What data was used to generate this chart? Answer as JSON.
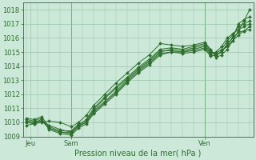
{
  "background_color": "#cce8d8",
  "grid_color": "#99c8aa",
  "line_color": "#2d6e2d",
  "ylabel_values": [
    1009,
    1010,
    1011,
    1012,
    1013,
    1014,
    1015,
    1016,
    1017,
    1018
  ],
  "ylim": [
    1009.0,
    1018.5
  ],
  "xlabel": "Pression niveau de la mer( hPa )",
  "x_ticks": [
    2,
    24,
    96
  ],
  "x_tick_labels": [
    "Jeu",
    "Sam",
    "Ven"
  ],
  "xlim": [
    -2,
    122
  ],
  "vlines_x": [
    24,
    96
  ],
  "lines": [
    {
      "x": [
        0,
        4,
        8,
        12,
        18,
        24,
        28,
        32,
        36,
        42,
        48,
        54,
        60,
        66,
        72,
        78,
        84,
        90,
        96,
        99,
        102,
        105,
        108,
        111,
        114,
        117,
        120
      ],
      "y": [
        1009.8,
        1009.9,
        1010.0,
        1010.1,
        1010.0,
        1009.7,
        1010.0,
        1010.5,
        1011.2,
        1012.0,
        1012.8,
        1013.5,
        1014.2,
        1014.8,
        1015.6,
        1015.5,
        1015.4,
        1015.5,
        1015.7,
        1015.2,
        1014.6,
        1014.8,
        1015.2,
        1015.8,
        1016.5,
        1017.2,
        1018.0
      ]
    },
    {
      "x": [
        0,
        4,
        8,
        12,
        18,
        24,
        28,
        32,
        36,
        42,
        48,
        54,
        60,
        66,
        72,
        78,
        84,
        90,
        96,
        99,
        102,
        105,
        108,
        111,
        114,
        117,
        120
      ],
      "y": [
        1010.0,
        1010.0,
        1010.1,
        1009.8,
        1009.5,
        1009.3,
        1009.8,
        1010.2,
        1011.0,
        1011.8,
        1012.5,
        1013.2,
        1013.9,
        1014.5,
        1015.2,
        1015.3,
        1015.2,
        1015.4,
        1015.6,
        1015.1,
        1014.8,
        1015.0,
        1015.5,
        1016.0,
        1017.0,
        1017.3,
        1017.5
      ]
    },
    {
      "x": [
        0,
        4,
        8,
        12,
        18,
        24,
        28,
        32,
        36,
        42,
        48,
        54,
        60,
        66,
        72,
        78,
        84,
        90,
        96,
        99,
        102,
        105,
        108,
        111,
        114,
        117,
        120
      ],
      "y": [
        1010.1,
        1010.0,
        1010.2,
        1009.6,
        1009.3,
        1009.2,
        1009.7,
        1010.0,
        1010.8,
        1011.5,
        1012.2,
        1013.0,
        1013.7,
        1014.3,
        1015.0,
        1015.2,
        1015.1,
        1015.3,
        1015.5,
        1015.0,
        1014.9,
        1015.2,
        1015.8,
        1016.2,
        1016.8,
        1017.0,
        1017.2
      ]
    },
    {
      "x": [
        0,
        4,
        8,
        12,
        18,
        24,
        28,
        32,
        36,
        42,
        48,
        54,
        60,
        66,
        72,
        78,
        84,
        90,
        96,
        99,
        102,
        105,
        108,
        111,
        114,
        117,
        120
      ],
      "y": [
        1010.2,
        1010.1,
        1010.3,
        1009.5,
        1009.2,
        1009.1,
        1009.6,
        1009.9,
        1010.6,
        1011.3,
        1012.0,
        1012.8,
        1013.5,
        1014.1,
        1014.8,
        1015.0,
        1015.0,
        1015.2,
        1015.4,
        1014.9,
        1015.0,
        1015.4,
        1016.0,
        1016.3,
        1016.6,
        1016.8,
        1017.0
      ]
    },
    {
      "x": [
        0,
        4,
        8,
        12,
        18,
        24,
        28,
        32,
        36,
        42,
        48,
        54,
        60,
        66,
        72,
        78,
        84,
        90,
        96,
        99,
        102,
        105,
        108,
        111,
        114,
        117,
        120
      ],
      "y": [
        1010.3,
        1010.2,
        1010.4,
        1009.7,
        1009.4,
        1009.4,
        1009.9,
        1010.1,
        1010.9,
        1011.7,
        1012.4,
        1013.1,
        1013.8,
        1014.4,
        1015.1,
        1015.1,
        1015.0,
        1015.1,
        1015.3,
        1014.8,
        1014.7,
        1015.1,
        1015.4,
        1015.8,
        1016.2,
        1016.5,
        1016.8
      ]
    },
    {
      "x": [
        0,
        4,
        8,
        12,
        18,
        24,
        28,
        32,
        36,
        42,
        48,
        54,
        60,
        66,
        72,
        78,
        84,
        90,
        96,
        99,
        102,
        105,
        108,
        111,
        114,
        117,
        120
      ],
      "y": [
        1010.0,
        1009.9,
        1010.1,
        1009.6,
        1009.3,
        1009.3,
        1009.8,
        1010.0,
        1010.7,
        1011.4,
        1012.1,
        1012.9,
        1013.6,
        1014.2,
        1014.9,
        1015.0,
        1014.9,
        1015.0,
        1015.2,
        1014.7,
        1014.8,
        1015.0,
        1015.6,
        1016.0,
        1016.4,
        1016.5,
        1016.6
      ]
    }
  ],
  "marker": "D",
  "markersize": 2.0,
  "linewidth": 0.7,
  "tick_fontsize": 6,
  "xlabel_fontsize": 7,
  "fig_w": 3.2,
  "fig_h": 2.0,
  "dpi": 100
}
